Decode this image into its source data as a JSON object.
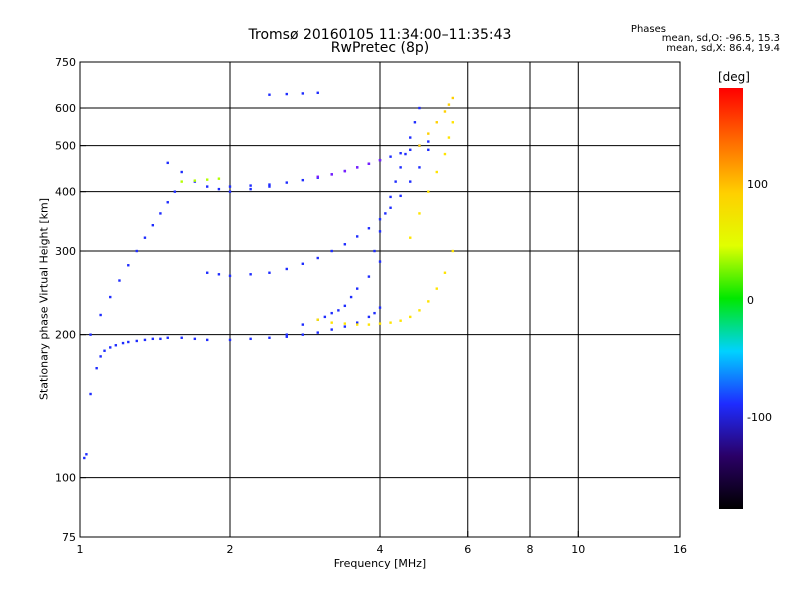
{
  "header": {
    "title_line1": "Tromsø 20160105 11:34:00–11:35:43",
    "title_line2": "RwPretec (8p)",
    "phase_heading": "Phases",
    "phase_o": "mean, sd,O: -96.5, 15.3",
    "phase_x": "mean, sd,X: 86.4, 19.4"
  },
  "colorbar": {
    "label": "[deg]",
    "ticks": [
      "100",
      "0",
      "-100"
    ],
    "tick_values": [
      100,
      0,
      -100
    ],
    "range": [
      -180,
      180
    ],
    "colors": [
      "#000000",
      "#2a0066",
      "#1e2cff",
      "#00d2ff",
      "#00e800",
      "#e0ff00",
      "#ffd000",
      "#ff6a00",
      "#ff0000"
    ]
  },
  "chart_data": {
    "type": "scatter",
    "title": "Tromsø 20160105 11:34:00–11:35:43",
    "subtitle": "RwPretec (8p)",
    "xlabel": "Frequency [MHz]",
    "ylabel": "Stationary phase Virtual Height [km]",
    "x_scale": "log",
    "y_scale": "log",
    "xlim": [
      1,
      16
    ],
    "ylim": [
      75,
      750
    ],
    "x_ticks": [
      1,
      2,
      4,
      6,
      8,
      10,
      16
    ],
    "y_ticks": [
      75,
      100,
      200,
      300,
      400,
      500,
      600,
      750
    ],
    "grid": true,
    "legend": "colorbar-right",
    "color_meaning": "phase [deg]",
    "series": [
      {
        "color": "#1e2cff",
        "x": [
          1.02,
          1.03,
          1.05,
          1.08,
          1.1,
          1.12,
          1.15,
          1.18,
          1.22,
          1.25,
          1.3,
          1.35,
          1.4,
          1.45,
          1.5,
          1.6,
          1.7,
          1.8,
          2.0,
          2.2,
          2.4,
          2.6,
          2.8,
          3.0,
          3.2,
          3.4,
          3.6,
          3.8,
          3.9,
          4.0
        ],
        "y": [
          110,
          112,
          150,
          170,
          180,
          185,
          188,
          190,
          192,
          193,
          194,
          195,
          196,
          196,
          197,
          197,
          196,
          195,
          195,
          196,
          197,
          198,
          200,
          202,
          205,
          208,
          212,
          218,
          222,
          228
        ]
      },
      {
        "color": "#1e2cff",
        "x": [
          1.05,
          1.1,
          1.15,
          1.2,
          1.25,
          1.3,
          1.35,
          1.4,
          1.45,
          1.5,
          1.55
        ],
        "y": [
          200,
          220,
          240,
          260,
          280,
          300,
          320,
          340,
          360,
          380,
          400
        ]
      },
      {
        "color": "#1e2cff",
        "x": [
          1.8,
          1.9,
          2.0,
          2.2,
          2.4,
          2.6,
          2.8,
          3.0,
          3.2,
          3.4,
          3.6,
          3.8,
          4.0,
          4.2,
          4.4,
          4.6,
          4.8,
          5.0
        ],
        "y": [
          270,
          268,
          266,
          268,
          270,
          275,
          282,
          290,
          300,
          310,
          322,
          335,
          350,
          370,
          392,
          420,
          450,
          490
        ]
      },
      {
        "color": "#1e2cff",
        "x": [
          2.0,
          2.2,
          2.4,
          2.6,
          2.8,
          3.0,
          3.2,
          3.4,
          3.6,
          3.8,
          4.0,
          4.2,
          4.4,
          4.6,
          4.8,
          5.0
        ],
        "y": [
          410,
          412,
          414,
          418,
          423,
          428,
          435,
          442,
          450,
          458,
          466,
          474,
          482,
          490,
          500,
          510
        ]
      },
      {
        "color": "#1e2cff",
        "x": [
          2.6,
          2.8,
          3.0,
          3.1,
          3.2,
          3.3,
          3.4,
          3.5,
          3.6,
          3.8,
          4.0
        ],
        "y": [
          200,
          210,
          215,
          218,
          222,
          225,
          230,
          240,
          250,
          265,
          285
        ]
      },
      {
        "color": "#1e2cff",
        "x": [
          3.9,
          4.0,
          4.1,
          4.2,
          4.3,
          4.4,
          4.5,
          4.6,
          4.7,
          4.8
        ],
        "y": [
          300,
          330,
          360,
          390,
          420,
          450,
          480,
          520,
          560,
          600
        ]
      },
      {
        "color": "#1e2cff",
        "x": [
          1.5,
          1.6,
          1.7,
          1.8,
          1.9,
          2.0,
          2.2,
          2.4
        ],
        "y": [
          460,
          440,
          420,
          410,
          405,
          400,
          405,
          410
        ]
      },
      {
        "color": "#1e2cff",
        "x": [
          2.4,
          2.6,
          2.8,
          3.0
        ],
        "y": [
          640,
          642,
          644,
          646
        ]
      },
      {
        "color": "#ffe400",
        "x": [
          3.0,
          3.2,
          3.4,
          3.6,
          3.8,
          4.0,
          4.2,
          4.4,
          4.6,
          4.8,
          5.0,
          5.2,
          5.4,
          5.6
        ],
        "y": [
          215,
          212,
          211,
          210,
          210,
          211,
          212,
          214,
          218,
          225,
          235,
          250,
          270,
          300
        ]
      },
      {
        "color": "#ffe400",
        "x": [
          4.6,
          4.8,
          5.0,
          5.2,
          5.4,
          5.5,
          5.6
        ],
        "y": [
          320,
          360,
          400,
          440,
          480,
          520,
          560
        ]
      },
      {
        "color": "#ffd000",
        "x": [
          4.8,
          5.0,
          5.2,
          5.4,
          5.5,
          5.6
        ],
        "y": [
          500,
          530,
          560,
          590,
          610,
          630
        ]
      },
      {
        "color": "#b4ff00",
        "x": [
          1.6,
          1.7,
          1.8,
          1.9
        ],
        "y": [
          420,
          422,
          424,
          426
        ]
      },
      {
        "color": "#7a1cff",
        "x": [
          3.0,
          3.2,
          3.4,
          3.6,
          3.8,
          4.0
        ],
        "y": [
          430,
          435,
          442,
          450,
          458,
          466
        ]
      }
    ]
  }
}
